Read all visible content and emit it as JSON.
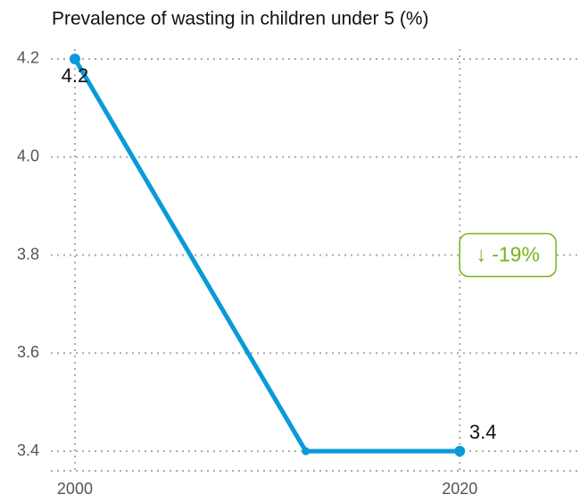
{
  "chart_data": {
    "type": "line",
    "title": "Prevalence of wasting in children under 5 (%)",
    "x": [
      2000,
      2012,
      2020
    ],
    "series": [
      {
        "color": "#0a9ad8",
        "values": [
          4.2,
          3.4,
          3.4
        ]
      }
    ],
    "xlim": [
      1998.75,
      2026.25
    ],
    "xticks": [
      2000,
      2020
    ],
    "ylim": [
      3.36,
      4.22
    ],
    "yticks": [
      {
        "value": 3.4,
        "label": "3.4"
      },
      {
        "value": 3.6,
        "label": "3.6"
      },
      {
        "value": 3.8,
        "label": "3.8"
      },
      {
        "value": 4.0,
        "label": "4.0"
      },
      {
        "value": 4.2,
        "label": "4.2"
      }
    ],
    "grid": true,
    "annotation": {
      "text": "↓ -19%",
      "color": "#7ab317",
      "x": 2022.5,
      "y": 3.8
    }
  }
}
